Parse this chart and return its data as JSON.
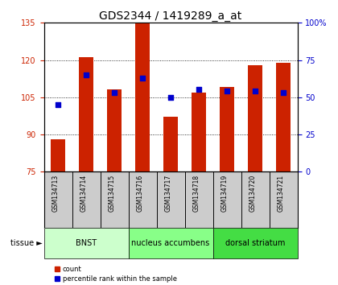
{
  "title": "GDS2344 / 1419289_a_at",
  "samples": [
    "GSM134713",
    "GSM134714",
    "GSM134715",
    "GSM134716",
    "GSM134717",
    "GSM134718",
    "GSM134719",
    "GSM134720",
    "GSM134721"
  ],
  "counts": [
    88,
    121,
    108,
    135,
    97,
    107,
    109,
    118,
    119
  ],
  "percentiles": [
    45,
    65,
    53,
    63,
    50,
    55,
    54,
    54,
    53
  ],
  "ylim_left": [
    75,
    135
  ],
  "ylim_right": [
    0,
    100
  ],
  "yticks_left": [
    75,
    90,
    105,
    120,
    135
  ],
  "yticks_right": [
    0,
    25,
    50,
    75,
    100
  ],
  "bar_color": "#cc2200",
  "dot_color": "#0000cc",
  "tissues": [
    {
      "label": "BNST",
      "start": 0,
      "end": 3,
      "color": "#ccffcc"
    },
    {
      "label": "nucleus accumbens",
      "start": 3,
      "end": 6,
      "color": "#88ff88"
    },
    {
      "label": "dorsal striatum",
      "start": 6,
      "end": 9,
      "color": "#44dd44"
    }
  ],
  "tissue_label": "tissue ►",
  "legend_count": "count",
  "legend_pct": "percentile rank within the sample",
  "bar_bottom": 75,
  "plot_bg": "#ffffff",
  "sample_bg": "#cccccc",
  "title_fontsize": 10,
  "tick_fontsize": 7,
  "sample_fontsize": 5.5,
  "tissue_fontsize": 7,
  "bar_width": 0.5
}
